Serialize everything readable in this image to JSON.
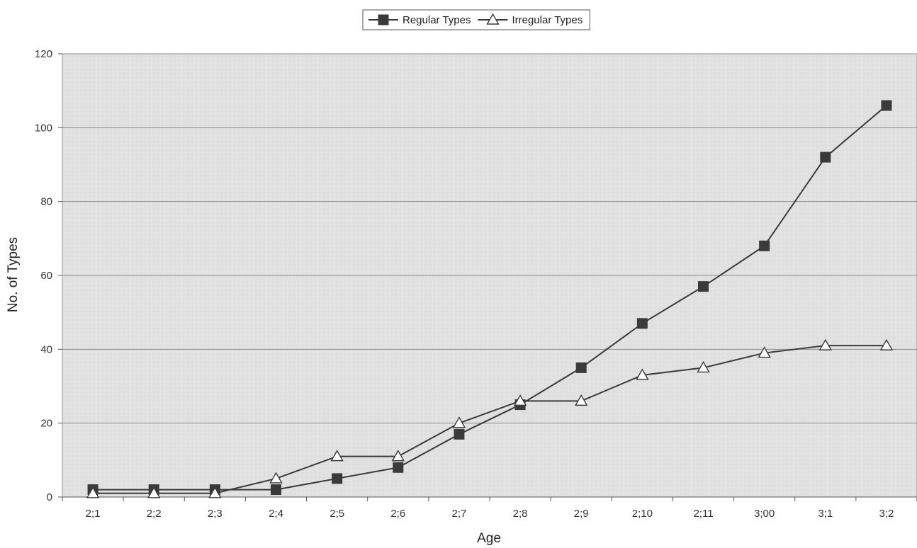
{
  "chart_data": {
    "type": "line",
    "title": "",
    "xlabel": "Age",
    "ylabel": "No. of Types",
    "categories": [
      "2;1",
      "2;2",
      "2;3",
      "2;4",
      "2;5",
      "2;6",
      "2;7",
      "2;8",
      "2;9",
      "2;10",
      "2;11",
      "3;00",
      "3;1",
      "3;2"
    ],
    "ylim": [
      0,
      120
    ],
    "yticks": [
      0,
      20,
      40,
      60,
      80,
      100,
      120
    ],
    "grid": "horizontal",
    "legend_position": "top-center",
    "series": [
      {
        "name": "Regular Types",
        "marker": "square",
        "values": [
          2,
          2,
          2,
          2,
          5,
          8,
          17,
          25,
          35,
          47,
          57,
          68,
          92,
          106
        ]
      },
      {
        "name": "Irregular Types",
        "marker": "triangle-open",
        "values": [
          1,
          1,
          1,
          5,
          11,
          11,
          20,
          26,
          26,
          33,
          35,
          39,
          41,
          41
        ]
      }
    ],
    "colors": {
      "plot_background": "#e3e3e3",
      "gridline": "#8c8c8c",
      "series_line": "#3a3a3a",
      "marker_fill": "#3a3a3a",
      "open_marker_fill": "#ffffff"
    }
  }
}
